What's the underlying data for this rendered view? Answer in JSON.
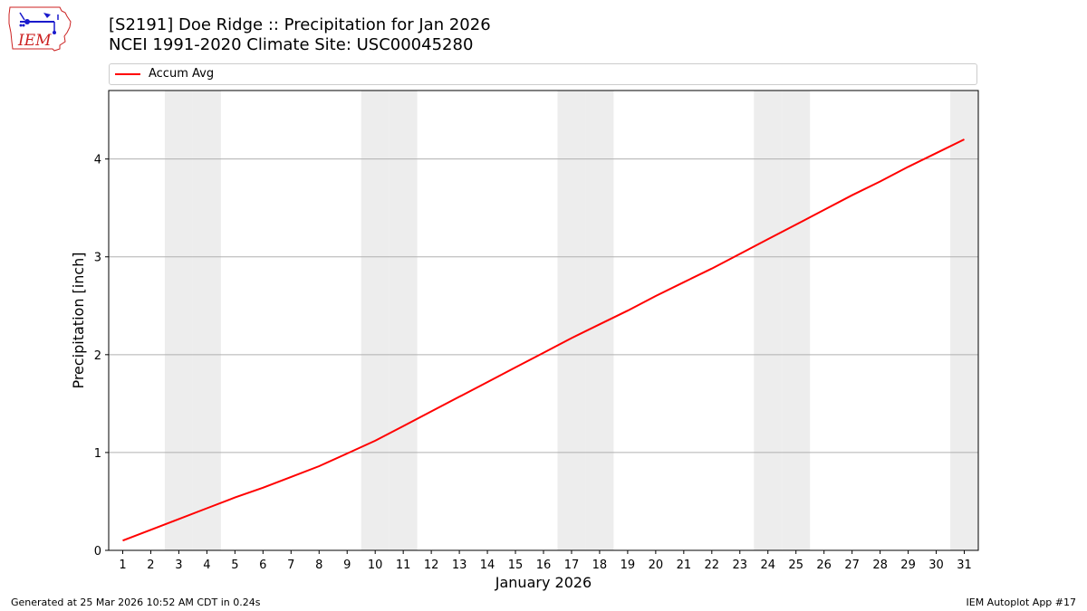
{
  "header": {
    "title_line1": "[S2191] Doe Ridge :: Precipitation for Jan 2026",
    "title_line2": "NCEI 1991-2020 Climate Site: USC00045280"
  },
  "logo": {
    "text": "IEM",
    "icon": "iem-iowa-logo"
  },
  "footer": {
    "left": "Generated at 25 Mar 2026 10:52 AM CDT in 0.24s",
    "right": "IEM Autoplot App #17"
  },
  "colors": {
    "line": "#ff0000",
    "weekend_band": "#ededed",
    "grid": "#b0b0b0",
    "logo_red": "#cc2222",
    "logo_blue": "#1a1acc"
  },
  "chart_data": {
    "type": "line",
    "xlabel": "January 2026",
    "ylabel": "Precipitation [inch]",
    "xlim": [
      0.5,
      31.5
    ],
    "ylim": [
      0,
      4.7
    ],
    "x_ticks": [
      1,
      2,
      3,
      4,
      5,
      6,
      7,
      8,
      9,
      10,
      11,
      12,
      13,
      14,
      15,
      16,
      17,
      18,
      19,
      20,
      21,
      22,
      23,
      24,
      25,
      26,
      27,
      28,
      29,
      30,
      31
    ],
    "y_ticks": [
      0,
      1,
      2,
      3,
      4
    ],
    "grid": "horizontal",
    "legend_placement": "top, above plot",
    "weekend_days": [
      3,
      4,
      10,
      11,
      17,
      18,
      24,
      25,
      31
    ],
    "series": [
      {
        "name": "Accum Avg",
        "x": [
          1,
          2,
          3,
          4,
          5,
          6,
          7,
          8,
          9,
          10,
          11,
          12,
          13,
          14,
          15,
          16,
          17,
          18,
          19,
          20,
          21,
          22,
          23,
          24,
          25,
          26,
          27,
          28,
          29,
          30,
          31
        ],
        "values": [
          0.1,
          0.21,
          0.32,
          0.43,
          0.54,
          0.64,
          0.75,
          0.86,
          0.99,
          1.12,
          1.27,
          1.42,
          1.57,
          1.72,
          1.87,
          2.02,
          2.17,
          2.31,
          2.45,
          2.6,
          2.74,
          2.88,
          3.03,
          3.18,
          3.33,
          3.48,
          3.63,
          3.77,
          3.92,
          4.06,
          4.2
        ]
      }
    ]
  }
}
